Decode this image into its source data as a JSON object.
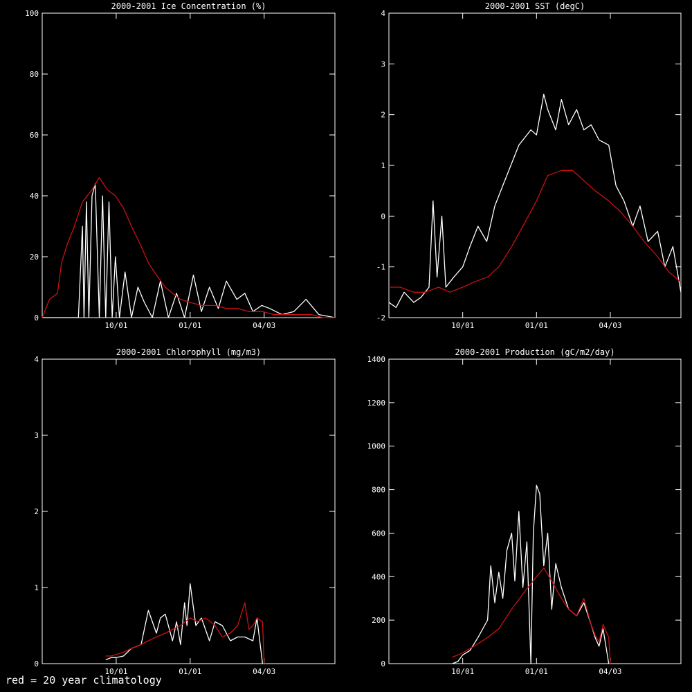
{
  "colors": {
    "background": "#000000",
    "observed": "#ffffff",
    "climatology": "#cc1111",
    "axes": "#ffffff"
  },
  "footnote": "red = 20 year climatology",
  "chart_data": [
    {
      "type": "line",
      "title": "2000-2001 Ice Concentration (%)",
      "xlabel": "",
      "ylabel": "",
      "ylim": [
        0,
        100
      ],
      "yticks": [
        "0",
        "20",
        "40",
        "60",
        "80",
        "100"
      ],
      "xticks": [
        "10/01",
        "01/01",
        "04/03"
      ],
      "xlim": [
        "07/01",
        "06/30"
      ],
      "grid": false,
      "series": [
        {
          "role": "observed",
          "x": [
            "07/01",
            "07/15",
            "08/01",
            "08/15",
            "08/20",
            "08/22",
            "08/25",
            "08/28",
            "09/01",
            "09/05",
            "09/10",
            "09/14",
            "09/18",
            "09/22",
            "09/26",
            "09/30",
            "10/05",
            "10/12",
            "10/20",
            "10/28",
            "11/05",
            "11/15",
            "11/25",
            "12/05",
            "12/15",
            "12/25",
            "01/05",
            "01/15",
            "01/25",
            "02/05",
            "02/15",
            "02/28",
            "03/10",
            "03/20",
            "03/31",
            "04/10",
            "04/25",
            "05/10",
            "05/25",
            "06/10",
            "06/30"
          ],
          "values": [
            0,
            0,
            0,
            0,
            30,
            0,
            38,
            0,
            40,
            44,
            0,
            40,
            0,
            38,
            0,
            20,
            0,
            15,
            0,
            10,
            5,
            0,
            12,
            0,
            8,
            0,
            14,
            2,
            10,
            3,
            12,
            6,
            8,
            2,
            4,
            3,
            1,
            2,
            6,
            1,
            0
          ]
        },
        {
          "role": "climatology",
          "x": [
            "07/01",
            "07/10",
            "07/20",
            "07/25",
            "08/01",
            "08/10",
            "08/20",
            "09/01",
            "09/10",
            "09/20",
            "09/30",
            "10/10",
            "10/20",
            "10/31",
            "11/10",
            "11/20",
            "12/01",
            "12/10",
            "12/20",
            "01/01",
            "01/15",
            "02/01",
            "02/15",
            "03/01",
            "03/15",
            "04/01",
            "04/15",
            "05/01",
            "05/15",
            "06/01",
            "06/15",
            "06/30"
          ],
          "values": [
            0,
            6,
            8,
            18,
            24,
            30,
            38,
            42,
            46,
            42,
            40,
            36,
            30,
            24,
            18,
            14,
            10,
            8,
            6,
            5,
            4,
            4,
            3,
            3,
            2,
            2,
            1,
            1,
            1,
            1,
            0,
            0
          ]
        }
      ]
    },
    {
      "type": "line",
      "title": "2000-2001 SST (degC)",
      "xlabel": "",
      "ylabel": "",
      "ylim": [
        -2,
        4
      ],
      "yticks": [
        "-2",
        "-1",
        "0",
        "1",
        "2",
        "3",
        "4"
      ],
      "xticks": [
        "10/01",
        "01/01",
        "04/03"
      ],
      "xlim": [
        "07/01",
        "06/30"
      ],
      "grid": false,
      "series": [
        {
          "role": "observed",
          "x": [
            "07/01",
            "07/10",
            "07/20",
            "08/01",
            "08/10",
            "08/20",
            "08/25",
            "08/30",
            "09/05",
            "09/10",
            "09/20",
            "10/01",
            "10/10",
            "10/20",
            "10/31",
            "11/10",
            "11/20",
            "11/30",
            "12/10",
            "12/20",
            "12/25",
            "01/01",
            "01/10",
            "01/15",
            "01/25",
            "02/01",
            "02/10",
            "02/20",
            "03/01",
            "03/10",
            "03/20",
            "04/01",
            "04/10",
            "04/20",
            "05/01",
            "05/10",
            "05/20",
            "06/01",
            "06/10",
            "06/20",
            "06/30"
          ],
          "values": [
            -1.7,
            -1.8,
            -1.5,
            -1.7,
            -1.6,
            -1.4,
            0.3,
            -1.2,
            0.0,
            -1.4,
            -1.2,
            -1.0,
            -0.6,
            -0.2,
            -0.5,
            0.2,
            0.6,
            1.0,
            1.4,
            1.6,
            1.7,
            1.6,
            2.4,
            2.1,
            1.7,
            2.3,
            1.8,
            2.1,
            1.7,
            1.8,
            1.5,
            1.4,
            0.6,
            0.3,
            -0.2,
            0.2,
            -0.5,
            -0.3,
            -1.0,
            -0.6,
            -1.5
          ]
        },
        {
          "role": "climatology",
          "x": [
            "07/01",
            "07/15",
            "08/01",
            "08/15",
            "09/01",
            "09/15",
            "10/01",
            "10/15",
            "11/01",
            "11/15",
            "12/01",
            "12/15",
            "01/01",
            "01/15",
            "02/01",
            "02/15",
            "03/01",
            "03/15",
            "04/01",
            "04/15",
            "05/01",
            "05/15",
            "06/01",
            "06/15",
            "06/30"
          ],
          "values": [
            -1.4,
            -1.4,
            -1.5,
            -1.5,
            -1.4,
            -1.5,
            -1.4,
            -1.3,
            -1.2,
            -1.0,
            -0.6,
            -0.2,
            0.3,
            0.8,
            0.9,
            0.9,
            0.7,
            0.5,
            0.3,
            0.1,
            -0.2,
            -0.5,
            -0.8,
            -1.1,
            -1.3
          ]
        }
      ]
    },
    {
      "type": "line",
      "title": "2000-2001 Chlorophyll (mg/m3)",
      "xlabel": "",
      "ylabel": "",
      "ylim": [
        0,
        4
      ],
      "yticks": [
        "0",
        "1",
        "2",
        "3",
        "4"
      ],
      "xticks": [
        "10/01",
        "01/01",
        "04/03"
      ],
      "xlim": [
        "07/01",
        "06/30"
      ],
      "grid": false,
      "series": [
        {
          "role": "observed",
          "x": [
            "09/18",
            "09/25",
            "10/01",
            "10/10",
            "10/20",
            "11/01",
            "11/10",
            "11/20",
            "11/25",
            "12/01",
            "12/10",
            "12/15",
            "12/20",
            "12/25",
            "12/28",
            "01/01",
            "01/08",
            "01/15",
            "01/25",
            "02/01",
            "02/10",
            "02/20",
            "03/01",
            "03/10",
            "03/20",
            "03/25",
            "04/01"
          ],
          "values": [
            0.05,
            0.08,
            0.08,
            0.1,
            0.2,
            0.25,
            0.7,
            0.4,
            0.6,
            0.65,
            0.3,
            0.55,
            0.25,
            0.8,
            0.5,
            1.05,
            0.5,
            0.6,
            0.3,
            0.55,
            0.5,
            0.3,
            0.35,
            0.35,
            0.3,
            0.6,
            0.0
          ]
        },
        {
          "role": "climatology",
          "x": [
            "09/18",
            "09/25",
            "10/01",
            "10/10",
            "10/20",
            "11/01",
            "11/10",
            "11/20",
            "12/01",
            "12/10",
            "12/20",
            "01/01",
            "01/10",
            "01/20",
            "02/01",
            "02/10",
            "02/20",
            "03/01",
            "03/10",
            "03/15",
            "03/20",
            "03/25",
            "04/01",
            "04/03"
          ],
          "values": [
            0.1,
            0.1,
            0.12,
            0.15,
            0.2,
            0.25,
            0.3,
            0.35,
            0.4,
            0.45,
            0.5,
            0.6,
            0.55,
            0.6,
            0.5,
            0.35,
            0.4,
            0.5,
            0.8,
            0.45,
            0.5,
            0.6,
            0.55,
            0.0
          ]
        }
      ]
    },
    {
      "type": "line",
      "title": "2000-2001 Production (gC/m2/day)",
      "xlabel": "",
      "ylabel": "",
      "ylim": [
        0,
        1400
      ],
      "yticks": [
        "0",
        "200",
        "400",
        "600",
        "800",
        "1000",
        "1200",
        "1400"
      ],
      "xticks": [
        "10/01",
        "01/01",
        "04/03"
      ],
      "xlim": [
        "07/01",
        "06/30"
      ],
      "grid": false,
      "series": [
        {
          "role": "observed",
          "x": [
            "09/18",
            "09/25",
            "10/01",
            "10/10",
            "10/20",
            "11/01",
            "11/05",
            "11/10",
            "11/15",
            "11/20",
            "11/25",
            "12/01",
            "12/05",
            "12/10",
            "12/15",
            "12/20",
            "12/25",
            "12/28",
            "01/01",
            "01/05",
            "01/10",
            "01/15",
            "01/20",
            "01/25",
            "02/01",
            "02/10",
            "02/20",
            "03/01",
            "03/10",
            "03/15",
            "03/20",
            "03/25",
            "04/01"
          ],
          "values": [
            0,
            10,
            40,
            60,
            120,
            200,
            450,
            280,
            420,
            300,
            520,
            600,
            380,
            700,
            350,
            560,
            0,
            600,
            820,
            780,
            450,
            600,
            250,
            460,
            350,
            250,
            220,
            280,
            180,
            120,
            80,
            160,
            0
          ]
        },
        {
          "role": "climatology",
          "x": [
            "09/18",
            "09/25",
            "10/01",
            "10/15",
            "11/01",
            "11/15",
            "12/01",
            "12/15",
            "01/01",
            "01/10",
            "01/20",
            "02/01",
            "02/10",
            "02/20",
            "03/01",
            "03/10",
            "03/15",
            "03/20",
            "03/25",
            "04/01",
            "04/03"
          ],
          "values": [
            30,
            40,
            50,
            80,
            120,
            160,
            250,
            320,
            400,
            440,
            380,
            300,
            250,
            220,
            300,
            180,
            130,
            100,
            180,
            120,
            0
          ]
        }
      ]
    }
  ]
}
